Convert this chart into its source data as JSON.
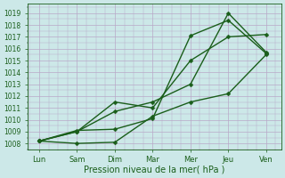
{
  "xlabel": "Pression niveau de la mer( hPa )",
  "x_labels": [
    "Lun",
    "Sam",
    "Dim",
    "Mar",
    "Mer",
    "Jeu",
    "Ven"
  ],
  "x_positions": [
    0,
    1,
    2,
    3,
    4,
    5,
    6
  ],
  "ylim": [
    1007.5,
    1019.8
  ],
  "yticks": [
    1008,
    1009,
    1010,
    1011,
    1012,
    1013,
    1014,
    1015,
    1016,
    1017,
    1018,
    1019
  ],
  "bg_color": "#cce8e8",
  "grid_color": "#b8a8c8",
  "line_color": "#1a5e1a",
  "line1": [
    1008.2,
    1008.0,
    1008.1,
    1010.3,
    1011.5,
    1012.2,
    1015.5
  ],
  "line2": [
    1008.2,
    1009.0,
    1011.5,
    1011.0,
    1015.0,
    1017.0,
    1017.2
  ],
  "line3": [
    1008.2,
    1009.0,
    1010.7,
    1011.5,
    1013.0,
    1019.0,
    1015.7
  ],
  "line4": [
    1008.2,
    1009.1,
    1009.2,
    1010.1,
    1017.1,
    1018.4,
    1015.6
  ],
  "marker": "D",
  "markersize": 2.5,
  "linewidth": 1.0
}
